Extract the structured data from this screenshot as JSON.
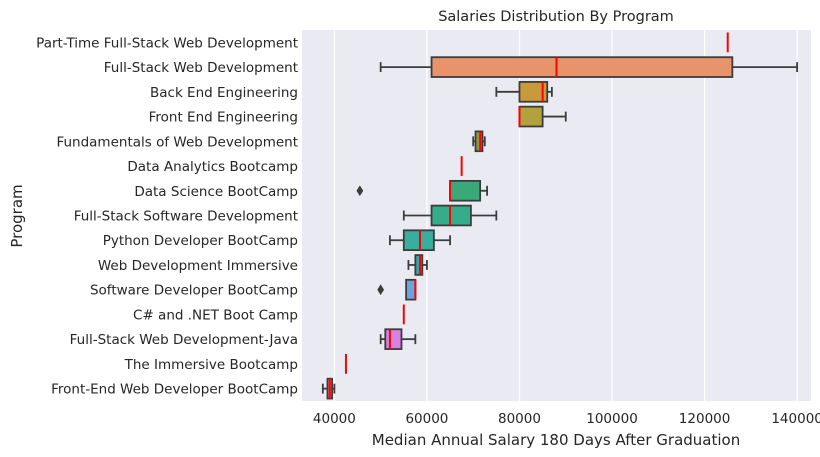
{
  "chart_data": {
    "type": "boxplot",
    "title": "Salaries Distribution By Program",
    "xlabel": "Median Annual Salary 180 Days After Graduation",
    "ylabel": "Program",
    "xlim": [
      33000,
      143000
    ],
    "xticks": [
      40000,
      60000,
      80000,
      100000,
      120000,
      140000
    ],
    "grid": true,
    "median_color": "#ff0000",
    "programs": [
      {
        "name": "Part-Time Full-Stack Web Development",
        "min": 125000,
        "q1": 125000,
        "median": 125000,
        "q3": 125000,
        "max": 125000,
        "outliers": [],
        "color": "#e4836a"
      },
      {
        "name": "Full-Stack Web Development",
        "min": 50000,
        "q1": 61000,
        "median": 88000,
        "q3": 126000,
        "max": 140000,
        "outliers": [],
        "color": "#e8936a"
      },
      {
        "name": "Back End Engineering",
        "min": 75000,
        "q1": 80000,
        "median": 85000,
        "q3": 86000,
        "max": 87000,
        "outliers": [],
        "color": "#c99a3c"
      },
      {
        "name": "Front End Engineering",
        "min": 80000,
        "q1": 80000,
        "median": 80000,
        "q3": 85000,
        "max": 90000,
        "outliers": [],
        "color": "#b0a23c"
      },
      {
        "name": "Fundamentals of Web Development",
        "min": 70000,
        "q1": 70500,
        "median": 71500,
        "q3": 72000,
        "max": 72500,
        "outliers": [],
        "color": "#8a9a3c"
      },
      {
        "name": "Data Analytics Bootcamp",
        "min": 67500,
        "q1": 67500,
        "median": 67500,
        "q3": 67500,
        "max": 67500,
        "outliers": [],
        "color": "#5aa53c"
      },
      {
        "name": "Data Science BootCamp",
        "min": 65000,
        "q1": 65000,
        "median": 65000,
        "q3": 71500,
        "max": 73000,
        "outliers": [
          45500
        ],
        "color": "#3aa878"
      },
      {
        "name": "Full-Stack Software Development",
        "min": 55000,
        "q1": 61000,
        "median": 65000,
        "q3": 69500,
        "max": 75000,
        "outliers": [],
        "color": "#36ad8a"
      },
      {
        "name": "Python Developer BootCamp",
        "min": 52000,
        "q1": 55000,
        "median": 58500,
        "q3": 61500,
        "max": 65000,
        "outliers": [],
        "color": "#38ae9f"
      },
      {
        "name": "Web Development Immersive",
        "min": 56000,
        "q1": 57500,
        "median": 58500,
        "q3": 59000,
        "max": 60000,
        "outliers": [],
        "color": "#3aa5b0"
      },
      {
        "name": "Software Developer BootCamp",
        "min": 55500,
        "q1": 55500,
        "median": 57500,
        "q3": 57500,
        "max": 57500,
        "outliers": [
          50000
        ],
        "color": "#6aa3e0"
      },
      {
        "name": "C# and .NET Boot Camp",
        "min": 55000,
        "q1": 55000,
        "median": 55000,
        "q3": 55000,
        "max": 55000,
        "outliers": [],
        "color": "#9c8fe0"
      },
      {
        "name": "Full-Stack Web Development-Java",
        "min": 50000,
        "q1": 51000,
        "median": 52000,
        "q3": 54500,
        "max": 57500,
        "outliers": [],
        "color": "#d782e0"
      },
      {
        "name": "The Immersive Bootcamp",
        "min": 42500,
        "q1": 42500,
        "median": 42500,
        "q3": 42500,
        "max": 42500,
        "outliers": [],
        "color": "#e47fc0"
      },
      {
        "name": "Front-End Web Developer BootCamp",
        "min": 37500,
        "q1": 38500,
        "median": 39000,
        "q3": 39500,
        "max": 40000,
        "outliers": [],
        "color": "#e8829a"
      }
    ]
  }
}
